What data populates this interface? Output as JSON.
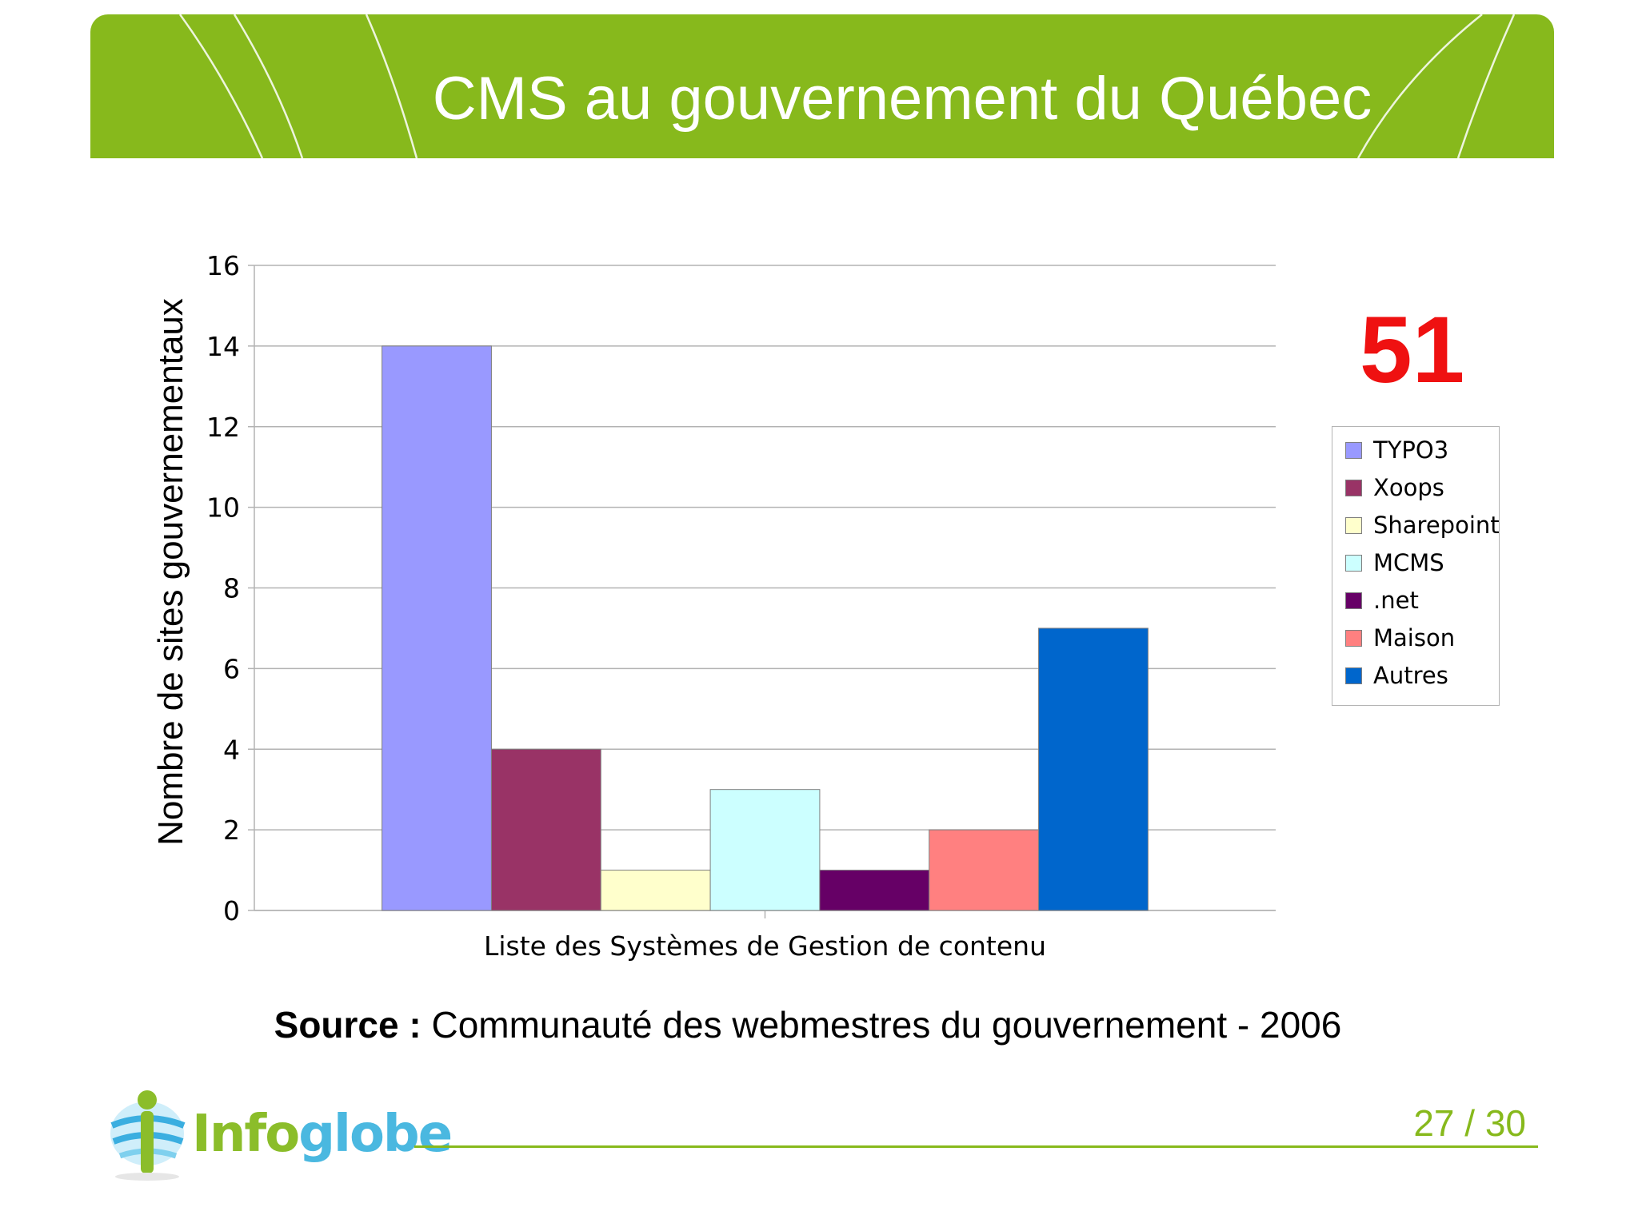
{
  "slide": {
    "title": "CMS au gouvernement du Québec",
    "highlight_number": "51",
    "source_label": "Source :",
    "source_text": "Communauté des webmestres du gouvernement - 2006",
    "page_number": "27 / 30",
    "logo": {
      "text_part1": "Info",
      "text_part2": "globe",
      "icon": "globe-person-icon"
    },
    "colors": {
      "banner": "#87b91c",
      "highlight": "#ef1111",
      "page_number": "#87b91c"
    }
  },
  "chart_data": {
    "type": "bar",
    "title": "",
    "xlabel": "Liste des Systèmes de Gestion de contenu",
    "ylabel": "Nombre de sites gouvernementaux",
    "ylim": [
      0,
      16
    ],
    "yticks": [
      0,
      2,
      4,
      6,
      8,
      10,
      12,
      14,
      16
    ],
    "grid": true,
    "legend_position": "right",
    "series": [
      {
        "name": "TYPO3",
        "values": [
          14
        ],
        "color": "#9999ff"
      },
      {
        "name": "Xoops",
        "values": [
          4
        ],
        "color": "#993366"
      },
      {
        "name": "Sharepoint",
        "values": [
          1
        ],
        "color": "#ffffcc"
      },
      {
        "name": "MCMS",
        "values": [
          3
        ],
        "color": "#ccffff"
      },
      {
        "name": ".net",
        "values": [
          1
        ],
        "color": "#660066"
      },
      {
        "name": "Maison",
        "values": [
          2
        ],
        "color": "#ff8080"
      },
      {
        "name": "Autres",
        "values": [
          7
        ],
        "color": "#0066cc"
      }
    ]
  }
}
